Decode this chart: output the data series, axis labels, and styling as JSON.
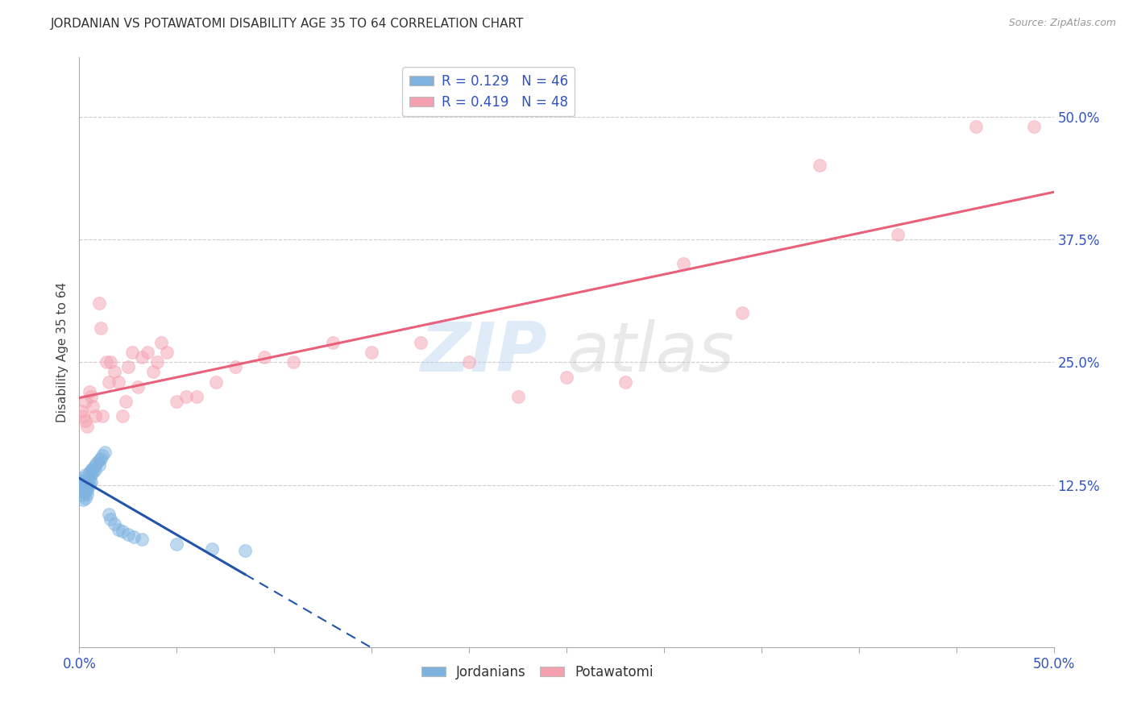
{
  "title": "JORDANIAN VS POTAWATOMI DISABILITY AGE 35 TO 64 CORRELATION CHART",
  "source": "Source: ZipAtlas.com",
  "ylabel": "Disability Age 35 to 64",
  "xlim": [
    0.0,
    0.5
  ],
  "ylim": [
    -0.04,
    0.56
  ],
  "yticks": [
    0.125,
    0.25,
    0.375,
    0.5
  ],
  "ytick_labels": [
    "12.5%",
    "25.0%",
    "37.5%",
    "50.0%"
  ],
  "xtick_labels_ends": [
    "0.0%",
    "50.0%"
  ],
  "legend_text1": "R = 0.129   N = 46",
  "legend_text2": "R = 0.419   N = 48",
  "blue_scatter": "#7EB3E0",
  "pink_scatter": "#F5A0B0",
  "line_blue": "#2255AA",
  "line_pink": "#E8607A",
  "jordanians_x": [
    0.001,
    0.001,
    0.001,
    0.001,
    0.002,
    0.002,
    0.002,
    0.002,
    0.002,
    0.002,
    0.003,
    0.003,
    0.003,
    0.003,
    0.003,
    0.004,
    0.004,
    0.004,
    0.004,
    0.005,
    0.005,
    0.005,
    0.006,
    0.006,
    0.006,
    0.007,
    0.007,
    0.008,
    0.008,
    0.009,
    0.01,
    0.01,
    0.011,
    0.012,
    0.013,
    0.015,
    0.016,
    0.018,
    0.02,
    0.022,
    0.025,
    0.028,
    0.032,
    0.05,
    0.068,
    0.085
  ],
  "jordanians_y": [
    0.125,
    0.128,
    0.13,
    0.122,
    0.118,
    0.125,
    0.132,
    0.12,
    0.115,
    0.11,
    0.135,
    0.128,
    0.122,
    0.118,
    0.112,
    0.13,
    0.125,
    0.12,
    0.116,
    0.138,
    0.13,
    0.125,
    0.14,
    0.135,
    0.128,
    0.142,
    0.138,
    0.145,
    0.14,
    0.148,
    0.15,
    0.145,
    0.152,
    0.155,
    0.158,
    0.095,
    0.09,
    0.085,
    0.08,
    0.078,
    0.075,
    0.072,
    0.07,
    0.065,
    0.06,
    0.058
  ],
  "potawatomi_x": [
    0.001,
    0.002,
    0.003,
    0.003,
    0.004,
    0.005,
    0.006,
    0.007,
    0.008,
    0.01,
    0.011,
    0.012,
    0.014,
    0.015,
    0.016,
    0.018,
    0.02,
    0.022,
    0.024,
    0.025,
    0.027,
    0.03,
    0.032,
    0.035,
    0.038,
    0.04,
    0.042,
    0.045,
    0.05,
    0.055,
    0.06,
    0.07,
    0.08,
    0.095,
    0.11,
    0.13,
    0.15,
    0.175,
    0.2,
    0.225,
    0.25,
    0.28,
    0.31,
    0.34,
    0.38,
    0.42,
    0.46,
    0.49
  ],
  "potawatomi_y": [
    0.2,
    0.195,
    0.21,
    0.19,
    0.185,
    0.22,
    0.215,
    0.205,
    0.195,
    0.31,
    0.285,
    0.195,
    0.25,
    0.23,
    0.25,
    0.24,
    0.23,
    0.195,
    0.21,
    0.245,
    0.26,
    0.225,
    0.255,
    0.26,
    0.24,
    0.25,
    0.27,
    0.26,
    0.21,
    0.215,
    0.215,
    0.23,
    0.245,
    0.255,
    0.25,
    0.27,
    0.26,
    0.27,
    0.25,
    0.215,
    0.235,
    0.23,
    0.35,
    0.3,
    0.45,
    0.38,
    0.49,
    0.49
  ]
}
